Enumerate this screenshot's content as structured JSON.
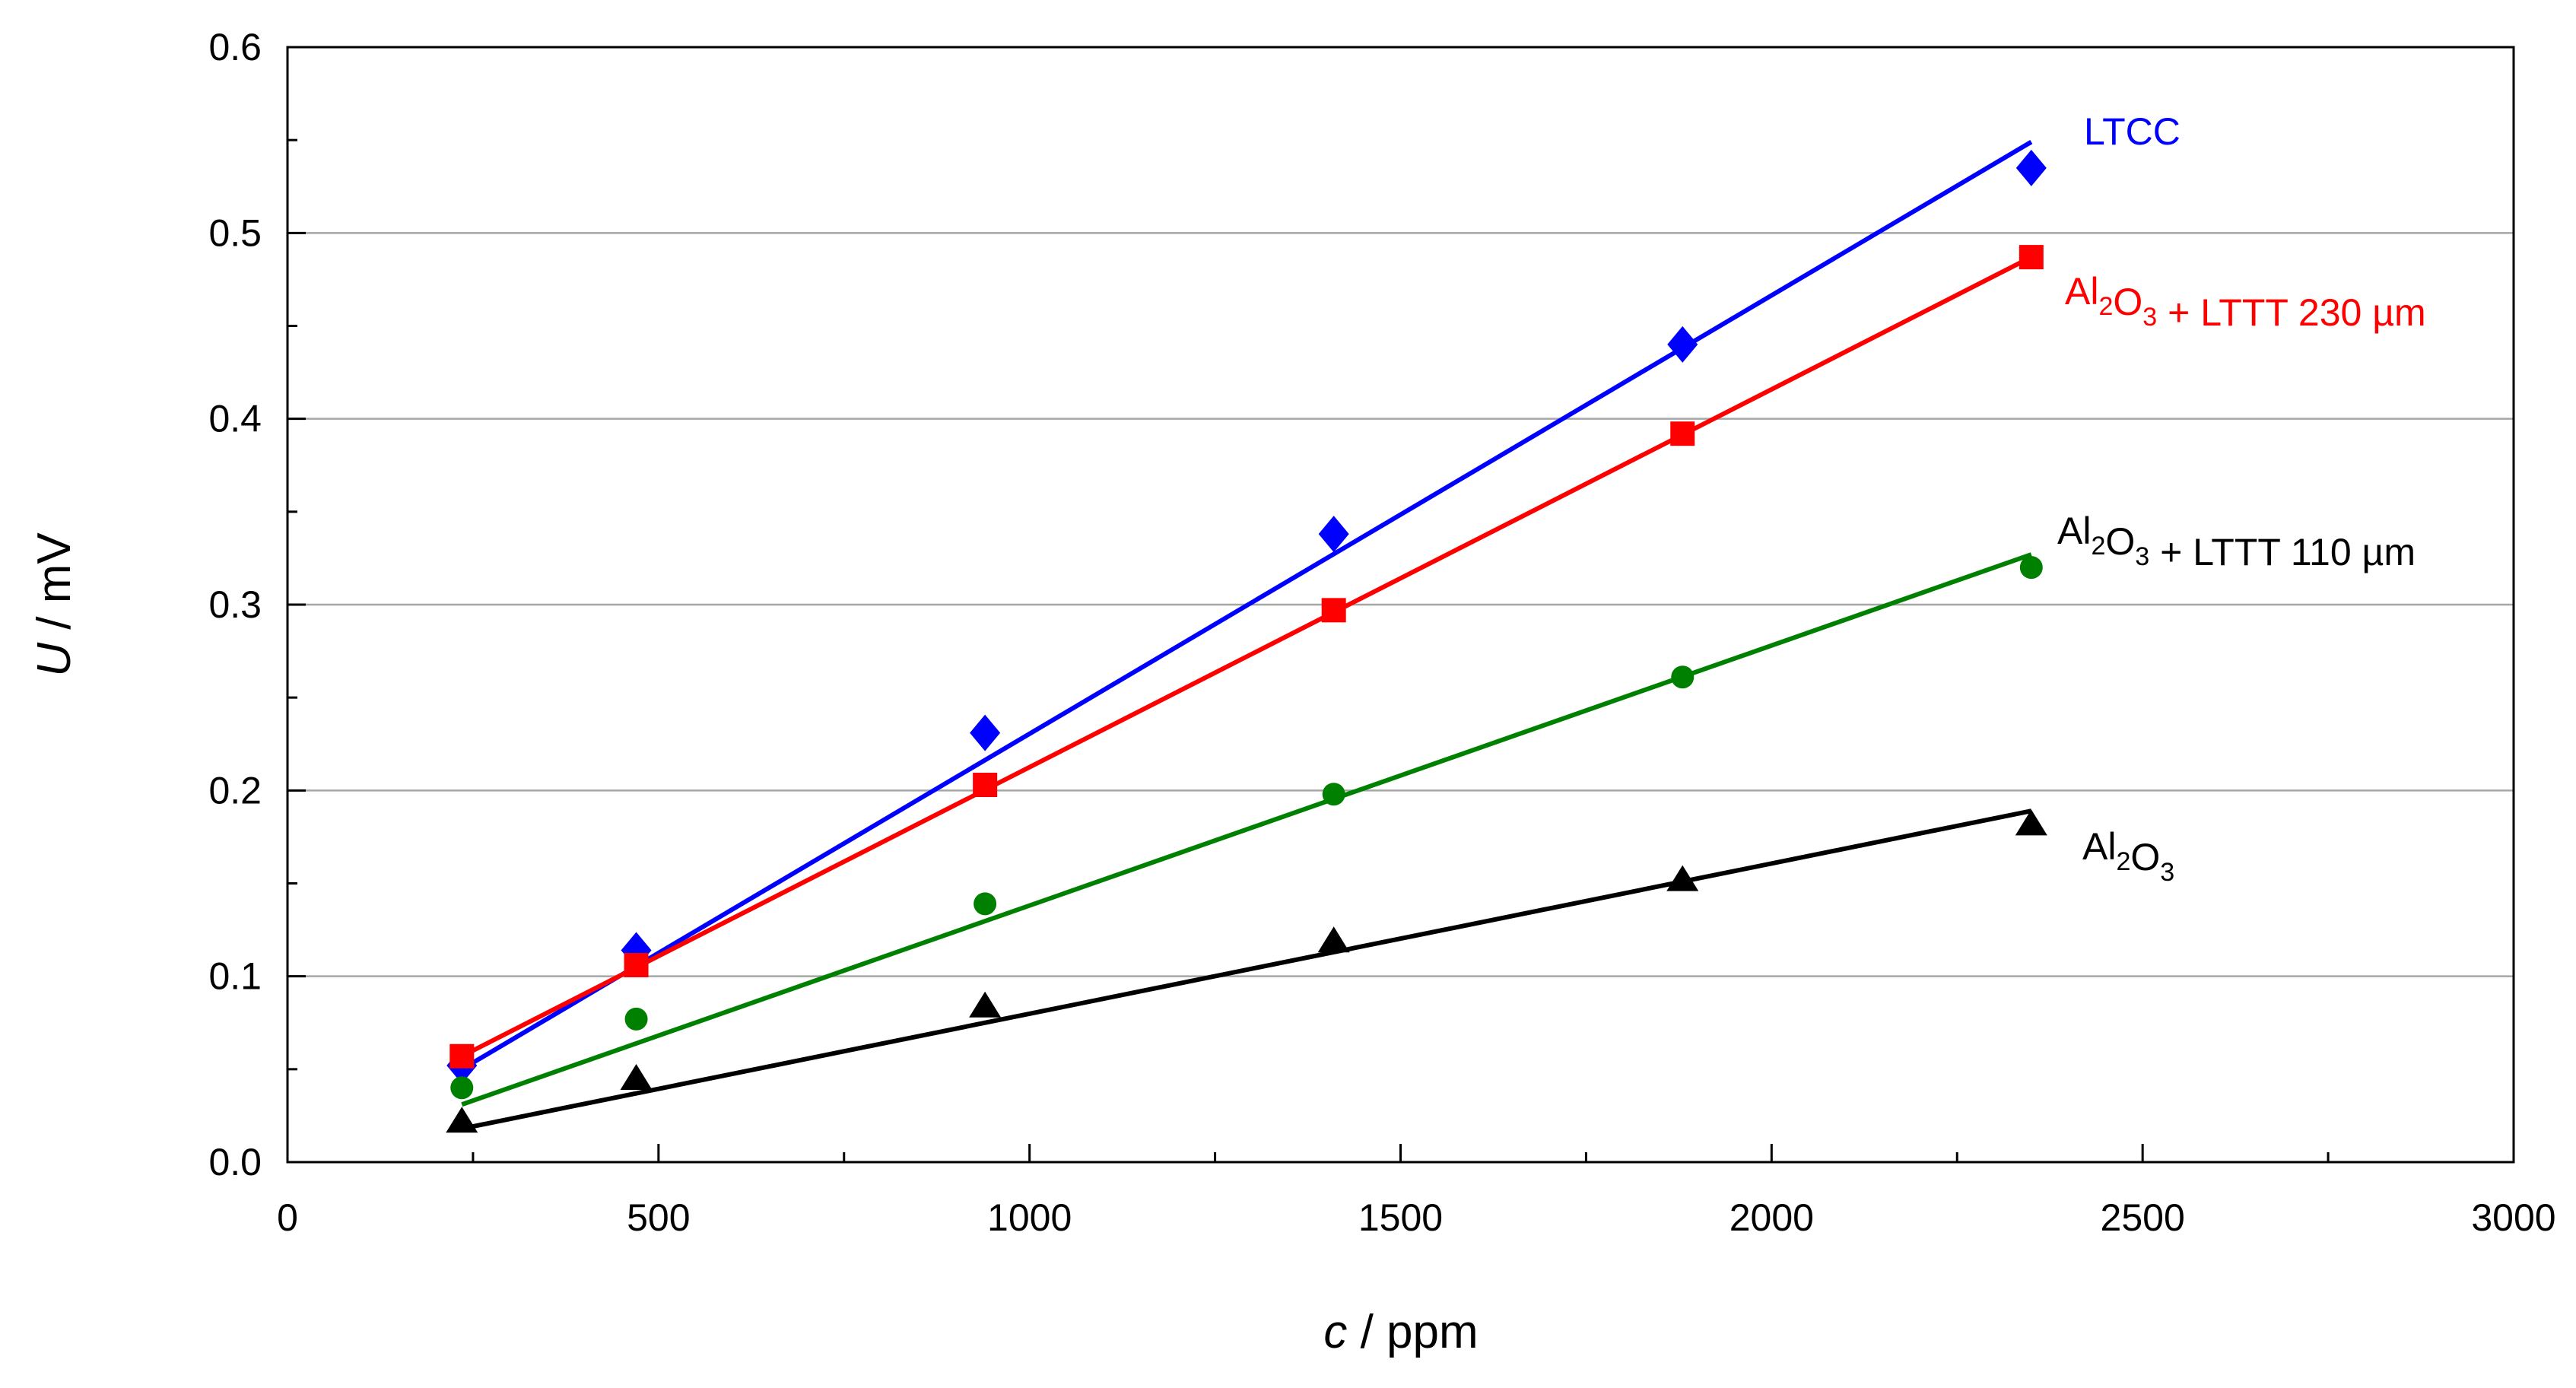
{
  "chart_data": {
    "type": "scatter",
    "title": "",
    "xlabel": {
      "symbol": "c",
      "unit": " / ppm"
    },
    "ylabel": {
      "symbol": "U",
      "unit": " / mV"
    },
    "xlim": [
      0,
      3000
    ],
    "ylim": [
      0,
      0.6
    ],
    "x_ticks": [
      0,
      500,
      1000,
      1500,
      2000,
      2500,
      3000
    ],
    "x_tick_labels": [
      "0",
      "500",
      "1000",
      "1500",
      "2000",
      "2500",
      "3000"
    ],
    "y_ticks": [
      0,
      0.1,
      0.2,
      0.3,
      0.4,
      0.5,
      0.6
    ],
    "y_tick_labels": [
      "0.0",
      "0.1",
      "0.2",
      "0.3",
      "0.4",
      "0.5",
      "0.6"
    ],
    "grid": "horizontal",
    "x": [
      235,
      470,
      940,
      1410,
      1880,
      2350
    ],
    "series": [
      {
        "name": "LTCC",
        "label_parts": [
          {
            "t": "LTCC"
          }
        ],
        "color": "#0000ff",
        "marker": "diamond",
        "values": [
          0.052,
          0.114,
          0.231,
          0.338,
          0.44,
          0.535
        ],
        "fit": {
          "x": [
            235,
            2350
          ],
          "y": [
            0.05,
            0.549
          ]
        }
      },
      {
        "name": "Al2O3 + LTTT 230 µm",
        "label_parts": [
          {
            "t": "Al"
          },
          {
            "t": "2",
            "sub": true
          },
          {
            "t": "O"
          },
          {
            "t": "3",
            "sub": true
          },
          {
            "t": " + LTTT 230 µm"
          }
        ],
        "color": "#ff0000",
        "marker": "square",
        "values": [
          0.057,
          0.106,
          0.203,
          0.297,
          0.392,
          0.487
        ],
        "fit": {
          "x": [
            235,
            2350
          ],
          "y": [
            0.057,
            0.487
          ]
        }
      },
      {
        "name": "Al2O3 + LTTT 110 µm",
        "label_parts": [
          {
            "t": "Al"
          },
          {
            "t": "2",
            "sub": true
          },
          {
            "t": "O"
          },
          {
            "t": "3",
            "sub": true
          },
          {
            "t": " + LTTT 110 µm"
          }
        ],
        "color": "#008000",
        "label_color": "#000000",
        "marker": "circle",
        "values": [
          0.04,
          0.077,
          0.139,
          0.198,
          0.261,
          0.32
        ],
        "fit": {
          "x": [
            235,
            2350
          ],
          "y": [
            0.031,
            0.327
          ]
        }
      },
      {
        "name": "Al2O3",
        "label_parts": [
          {
            "t": "Al"
          },
          {
            "t": "2",
            "sub": true
          },
          {
            "t": "O"
          },
          {
            "t": "3",
            "sub": true
          }
        ],
        "color": "#000000",
        "marker": "triangle",
        "values": [
          0.022,
          0.045,
          0.084,
          0.119,
          0.152,
          0.182
        ],
        "fit": {
          "x": [
            235,
            2350
          ],
          "y": [
            0.018,
            0.189
          ]
        }
      }
    ]
  }
}
